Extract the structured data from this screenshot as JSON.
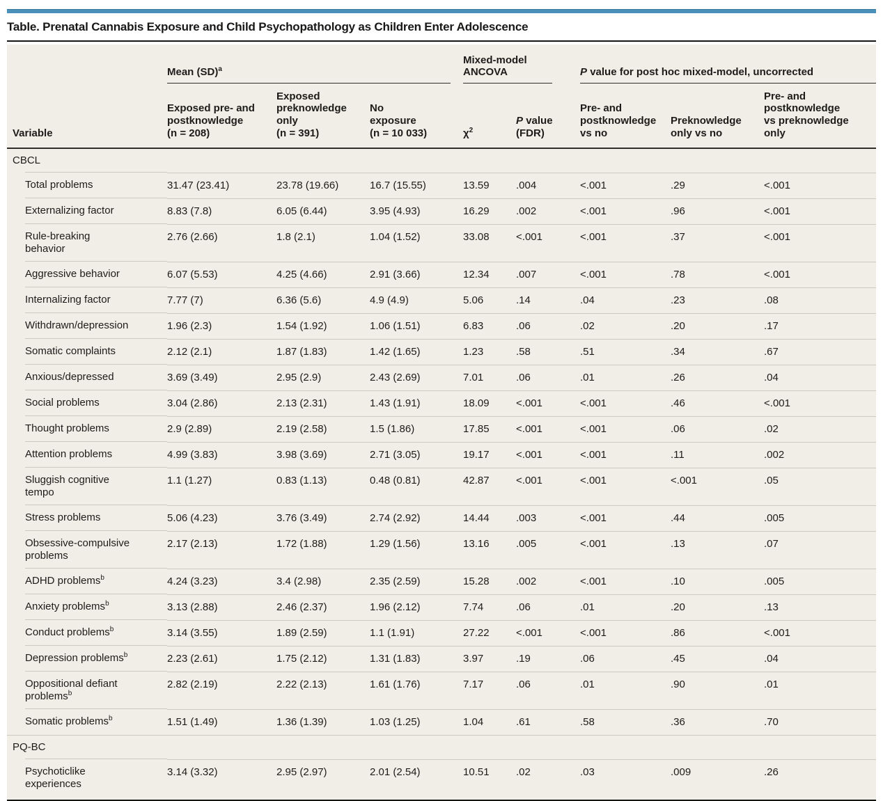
{
  "colors": {
    "accent_blue": "#4a90bb",
    "table_background": "#f0eee6",
    "separator_line": "#cccabf",
    "dark_rule": "#2e2d2a",
    "text": "#1d1c1a"
  },
  "title": "Table. Prenatal Cannabis Exposure and Child Psychopathology as Children Enter Adolescence",
  "table": {
    "group_headers": {
      "mean_sd": {
        "text": "Mean (SD)",
        "sup": "a"
      },
      "ancova": "Mixed-model\nANCOVA",
      "posthoc": {
        "p": "P",
        "rest": " value for post hoc mixed-model, uncorrected"
      }
    },
    "columns": {
      "variable": "Variable",
      "exposed_prepost": "Exposed pre- and\npostknowledge\n(n = 208)",
      "exposed_pre": "Exposed\npreknowledge\nonly\n(n = 391)",
      "no_exposure": "No\nexposure\n(n = 10 033)",
      "chi": {
        "base": "χ",
        "sup": "2"
      },
      "pvalue_fdr": {
        "p": "P",
        "rest": " value\n(FDR)"
      },
      "prepost_vs_no": "Pre- and\npostknowledge\nvs no",
      "pre_vs_no": "Preknowledge\nonly vs no",
      "prepost_vs_pre": "Pre- and\npostknowledge\nvs preknowledge\nonly"
    },
    "sections": [
      {
        "label": "CBCL",
        "rows": [
          {
            "label": "Total problems",
            "values": [
              "31.47 (23.41)",
              "23.78 (19.66)",
              "16.7 (15.55)",
              "13.59",
              ".004",
              "<.001",
              ".29",
              "<.001"
            ]
          },
          {
            "label": "Externalizing factor",
            "values": [
              "8.83 (7.8)",
              "6.05 (6.44)",
              "3.95 (4.93)",
              "16.29",
              ".002",
              "<.001",
              ".96",
              "<.001"
            ]
          },
          {
            "label": "Rule-breaking\nbehavior",
            "values": [
              "2.76 (2.66)",
              "1.8 (2.1)",
              "1.04 (1.52)",
              "33.08",
              "<.001",
              "<.001",
              ".37",
              "<.001"
            ]
          },
          {
            "label": "Aggressive behavior",
            "values": [
              "6.07 (5.53)",
              "4.25 (4.66)",
              "2.91 (3.66)",
              "12.34",
              ".007",
              "<.001",
              ".78",
              "<.001"
            ]
          },
          {
            "label": "Internalizing factor",
            "values": [
              "7.77 (7)",
              "6.36 (5.6)",
              "4.9 (4.9)",
              "5.06",
              ".14",
              ".04",
              ".23",
              ".08"
            ]
          },
          {
            "label": "Withdrawn/depression",
            "values": [
              "1.96 (2.3)",
              "1.54 (1.92)",
              "1.06 (1.51)",
              "6.83",
              ".06",
              ".02",
              ".20",
              ".17"
            ]
          },
          {
            "label": "Somatic complaints",
            "values": [
              "2.12 (2.1)",
              "1.87 (1.83)",
              "1.42 (1.65)",
              "1.23",
              ".58",
              ".51",
              ".34",
              ".67"
            ]
          },
          {
            "label": "Anxious/depressed",
            "values": [
              "3.69 (3.49)",
              "2.95 (2.9)",
              "2.43 (2.69)",
              "7.01",
              ".06",
              ".01",
              ".26",
              ".04"
            ]
          },
          {
            "label": "Social problems",
            "values": [
              "3.04 (2.86)",
              "2.13 (2.31)",
              "1.43 (1.91)",
              "18.09",
              "<.001",
              "<.001",
              ".46",
              "<.001"
            ]
          },
          {
            "label": "Thought problems",
            "values": [
              "2.9 (2.89)",
              "2.19 (2.58)",
              "1.5 (1.86)",
              "17.85",
              "<.001",
              "<.001",
              ".06",
              ".02"
            ]
          },
          {
            "label": "Attention problems",
            "values": [
              "4.99 (3.83)",
              "3.98 (3.69)",
              "2.71 (3.05)",
              "19.17",
              "<.001",
              "<.001",
              ".11",
              ".002"
            ]
          },
          {
            "label": "Sluggish cognitive\ntempo",
            "values": [
              "1.1 (1.27)",
              "0.83 (1.13)",
              "0.48 (0.81)",
              "42.87",
              "<.001",
              "<.001",
              "<.001",
              ".05"
            ]
          },
          {
            "label": "Stress problems",
            "values": [
              "5.06 (4.23)",
              "3.76 (3.49)",
              "2.74 (2.92)",
              "14.44",
              ".003",
              "<.001",
              ".44",
              ".005"
            ]
          },
          {
            "label": "Obsessive-compulsive\nproblems",
            "values": [
              "2.17 (2.13)",
              "1.72 (1.88)",
              "1.29 (1.56)",
              "13.16",
              ".005",
              "<.001",
              ".13",
              ".07"
            ]
          },
          {
            "label": "ADHD problems",
            "sup": "b",
            "values": [
              "4.24 (3.23)",
              "3.4 (2.98)",
              "2.35 (2.59)",
              "15.28",
              ".002",
              "<.001",
              ".10",
              ".005"
            ]
          },
          {
            "label": "Anxiety problems",
            "sup": "b",
            "values": [
              "3.13 (2.88)",
              "2.46 (2.37)",
              "1.96 (2.12)",
              "7.74",
              ".06",
              ".01",
              ".20",
              ".13"
            ]
          },
          {
            "label": "Conduct problems",
            "sup": "b",
            "values": [
              "3.14 (3.55)",
              "1.89 (2.59)",
              "1.1 (1.91)",
              "27.22",
              "<.001",
              "<.001",
              ".86",
              "<.001"
            ]
          },
          {
            "label": "Depression problems",
            "sup": "b",
            "values": [
              "2.23 (2.61)",
              "1.75 (2.12)",
              "1.31 (1.83)",
              "3.97",
              ".19",
              ".06",
              ".45",
              ".04"
            ]
          },
          {
            "label": "Oppositional defiant\nproblems",
            "sup": "b",
            "values": [
              "2.82 (2.19)",
              "2.22 (2.13)",
              "1.61 (1.76)",
              "7.17",
              ".06",
              ".01",
              ".90",
              ".01"
            ]
          },
          {
            "label": "Somatic problems",
            "sup": "b",
            "values": [
              "1.51 (1.49)",
              "1.36 (1.39)",
              "1.03 (1.25)",
              "1.04",
              ".61",
              ".58",
              ".36",
              ".70"
            ]
          }
        ]
      },
      {
        "label": "PQ-BC",
        "rows": [
          {
            "label": "Psychoticlike\nexperiences",
            "values": [
              "3.14 (3.32)",
              "2.95 (2.97)",
              "2.01 (2.54)",
              "10.51",
              ".02",
              ".03",
              ".009",
              ".26"
            ]
          }
        ]
      }
    ]
  }
}
